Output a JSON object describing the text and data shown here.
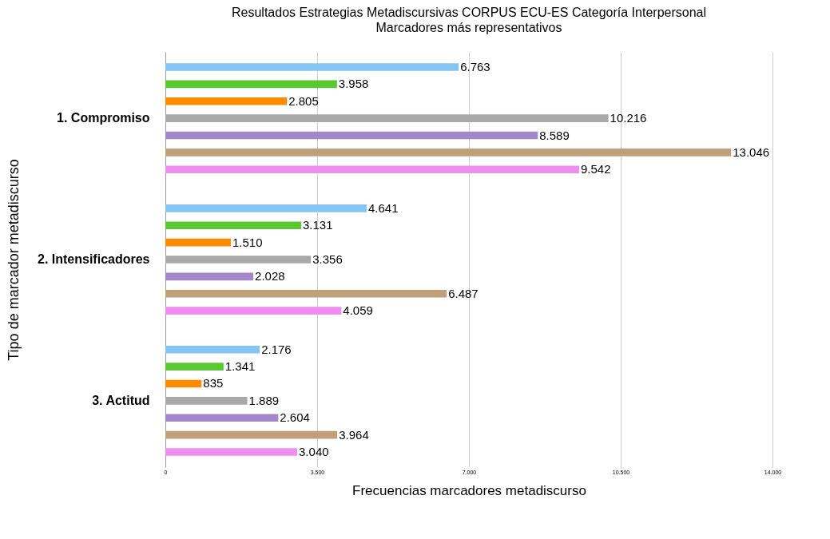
{
  "chart_data": {
    "type": "bar",
    "orientation": "horizontal",
    "title": "Resultados  Estrategias Metadiscursivas CORPUS ECU-ES Categoría Interpersonal",
    "subtitle": "Marcadores más representativos",
    "xlabel": "Frecuencias marcadores metadiscurso",
    "ylabel": "Tipo de marcador metadiscurso",
    "categories": [
      "1. Compromiso",
      "2. Intensificadores",
      "3. Actitud"
    ],
    "series": [
      {
        "color": "#84c5f4",
        "values": [
          6763,
          4641,
          2176
        ],
        "value_labels": [
          "6.763",
          "4.641",
          "2.176"
        ]
      },
      {
        "color": "#5ac832",
        "values": [
          3958,
          3131,
          1341
        ],
        "value_labels": [
          "3.958",
          "3.131",
          "1.341"
        ]
      },
      {
        "color": "#ff8c00",
        "values": [
          2805,
          1510,
          835
        ],
        "value_labels": [
          "2.805",
          "1.510",
          "835"
        ]
      },
      {
        "color": "#a9a9a9",
        "values": [
          10216,
          3356,
          1889
        ],
        "value_labels": [
          "10.216",
          "3.356",
          "1.889"
        ]
      },
      {
        "color": "#a287c9",
        "values": [
          8589,
          2028,
          2604
        ],
        "value_labels": [
          "8.589",
          "2.028",
          "2.604"
        ]
      },
      {
        "color": "#c0a07a",
        "values": [
          13046,
          6487,
          3964
        ],
        "value_labels": [
          "13.046",
          "6.487",
          "3.964"
        ]
      },
      {
        "color": "#f08ef0",
        "values": [
          9542,
          4059,
          3040
        ],
        "value_labels": [
          "9.542",
          "4.059",
          "3.040"
        ]
      }
    ],
    "xlim": [
      0,
      14000
    ],
    "xticks": [
      0,
      {
        "value": 3500,
        "label": "3.500"
      },
      {
        "value": 7000,
        "label": "7.000"
      },
      {
        "value": 10500,
        "label": "10.500"
      },
      {
        "value": 14000,
        "label": "14.000"
      }
    ],
    "grid": "x",
    "legend": false
  }
}
